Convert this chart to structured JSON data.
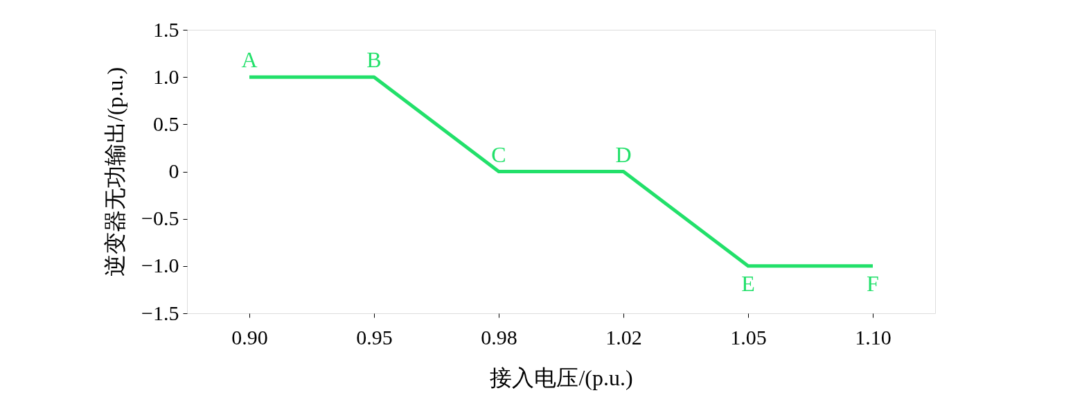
{
  "chart_data": {
    "type": "line",
    "xlabel": "接入电压/(p.u.)",
    "ylabel": "逆变器无功输出/(p.u.)",
    "categories": [
      "0.90",
      "0.95",
      "0.98",
      "1.02",
      "1.05",
      "1.10"
    ],
    "series": [
      {
        "color": "#22e06a",
        "values": [
          1.0,
          1.0,
          0,
          0,
          -1.0,
          -1.0
        ]
      }
    ],
    "ylim": [
      -1.5,
      1.5
    ],
    "yticks": [
      {
        "value": -1.5,
        "label": "−1.5"
      },
      {
        "value": -1.0,
        "label": "−1.0"
      },
      {
        "value": -0.5,
        "label": "−0.5"
      },
      0,
      0.5,
      {
        "value": 1.0,
        "label": "1.0"
      },
      1.5
    ],
    "annotations": [
      {
        "text": "A",
        "x": "0.90",
        "y": 1.0
      },
      {
        "text": "B",
        "x": "0.95",
        "y": 1.0
      },
      {
        "text": "C",
        "x": "0.98",
        "y": 0
      },
      {
        "text": "D",
        "x": "1.02",
        "y": 0
      },
      {
        "text": "E",
        "x": "1.05",
        "y": -1.0
      },
      {
        "text": "F",
        "x": "1.10",
        "y": -1.0
      }
    ],
    "grid": false,
    "marker": "none",
    "line_style": "solid"
  }
}
